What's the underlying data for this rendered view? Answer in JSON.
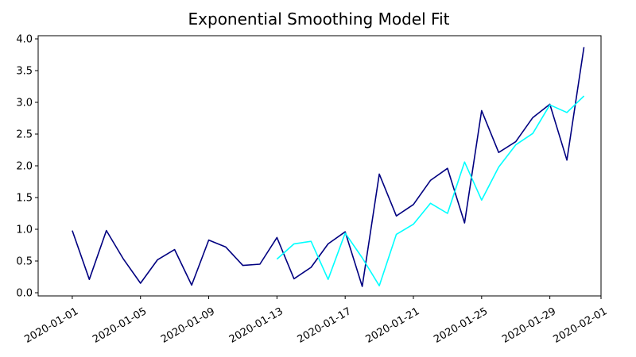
{
  "chart_data": {
    "type": "line",
    "title": "Exponential Smoothing Model Fit",
    "xlabel": "",
    "ylabel": "",
    "x_axis_type": "date",
    "xlim": [
      "2019-12-30",
      "2020-02-01"
    ],
    "ylim": [
      -0.05,
      4.05
    ],
    "grid": false,
    "legend": "none",
    "x_ticks": [
      "2020-01-01",
      "2020-01-05",
      "2020-01-09",
      "2020-01-13",
      "2020-01-17",
      "2020-01-21",
      "2020-01-25",
      "2020-01-29",
      "2020-02-01"
    ],
    "y_ticks": [
      "0.0",
      "0.5",
      "1.0",
      "1.5",
      "2.0",
      "2.5",
      "3.0",
      "3.5",
      "4.0"
    ],
    "series": [
      {
        "color": "#000080",
        "x": [
          "2020-01-01",
          "2020-01-02",
          "2020-01-03",
          "2020-01-04",
          "2020-01-05",
          "2020-01-06",
          "2020-01-07",
          "2020-01-08",
          "2020-01-09",
          "2020-01-10",
          "2020-01-11",
          "2020-01-12",
          "2020-01-13",
          "2020-01-14",
          "2020-01-15",
          "2020-01-16",
          "2020-01-17",
          "2020-01-18",
          "2020-01-19",
          "2020-01-20",
          "2020-01-21",
          "2020-01-22",
          "2020-01-23",
          "2020-01-24",
          "2020-01-25",
          "2020-01-26",
          "2020-01-27",
          "2020-01-28",
          "2020-01-29",
          "2020-01-30",
          "2020-01-31"
        ],
        "values": [
          0.98,
          0.21,
          0.98,
          0.53,
          0.15,
          0.52,
          0.68,
          0.12,
          0.83,
          0.72,
          0.43,
          0.45,
          0.87,
          0.22,
          0.4,
          0.77,
          0.96,
          0.1,
          1.87,
          1.21,
          1.39,
          1.77,
          1.96,
          1.1,
          2.87,
          2.21,
          2.38,
          2.76,
          2.97,
          2.09,
          3.87
        ]
      },
      {
        "color": "#00ffff",
        "x": [
          "2020-01-13",
          "2020-01-14",
          "2020-01-15",
          "2020-01-16",
          "2020-01-17",
          "2020-01-18",
          "2020-01-19",
          "2020-01-20",
          "2020-01-21",
          "2020-01-22",
          "2020-01-23",
          "2020-01-24",
          "2020-01-25",
          "2020-01-26",
          "2020-01-27",
          "2020-01-28",
          "2020-01-29",
          "2020-01-30",
          "2020-01-31"
        ],
        "values": [
          0.53,
          0.77,
          0.81,
          0.21,
          0.94,
          0.55,
          0.11,
          0.92,
          1.08,
          1.41,
          1.25,
          2.06,
          1.46,
          1.98,
          2.33,
          2.51,
          2.96,
          2.84,
          3.1
        ]
      }
    ]
  }
}
